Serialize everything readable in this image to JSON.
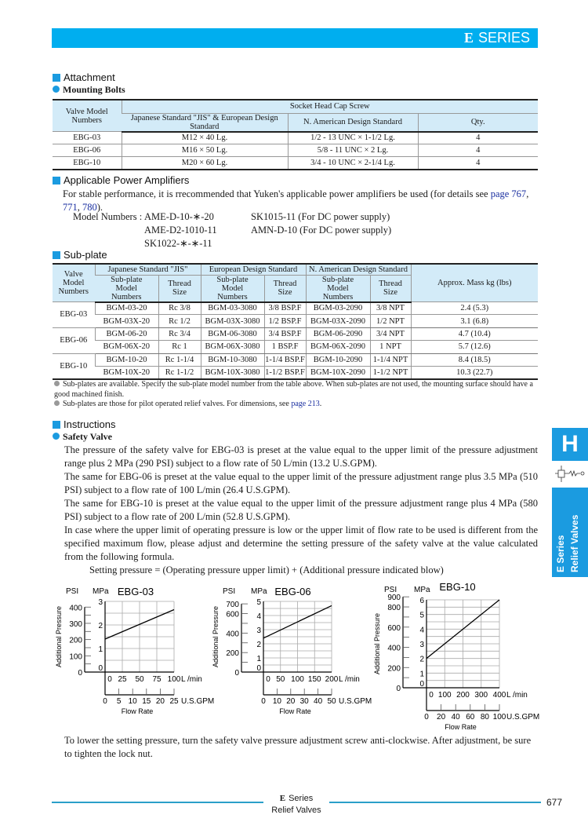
{
  "header": {
    "series_letter": "E",
    "series_label": "SERIES"
  },
  "attachment": {
    "title": "Attachment",
    "subtitle": "Mounting Bolts",
    "table": {
      "col_valve": "Valve Model Numbers",
      "col_group": "Socket Head Cap Screw",
      "col_jis": "Japanese Standard \"JIS\" & European Design Standard",
      "col_na": "N. American Design Standard",
      "col_qty": "Qty.",
      "rows": [
        {
          "model": "EBG-03",
          "jis": "M12 × 40 Lg.",
          "na": "1/2 - 13 UNC × 1-1/2 Lg.",
          "qty": "4"
        },
        {
          "model": "EBG-06",
          "jis": "M16 × 50 Lg.",
          "na": "5/8 - 11 UNC × 2 Lg.",
          "qty": "4"
        },
        {
          "model": "EBG-10",
          "jis": "M20 × 60 Lg.",
          "na": "3/4 - 10 UNC × 2-1/4 Lg.",
          "qty": "4"
        }
      ]
    }
  },
  "amplifiers": {
    "title": "Applicable Power Amplifiers",
    "text_before": "For stable performance, it is rrecommended that Yuken's applicable power amplifiers be used (for details see ",
    "link1": "page 767",
    "sep1": ",",
    "link2": "771",
    "sep2": ", ",
    "link3": "780",
    "text_after": ").",
    "model_label": "Model Numbers :",
    "models_col1": [
      "AME-D-10-∗-20",
      "AME-D2-1010-11",
      "SK1022-∗-∗-11"
    ],
    "models_col2": [
      "SK1015-11 (For DC power supply)",
      "AMN-D-10 (For DC power supply)"
    ]
  },
  "subplate": {
    "title": "Sub-plate",
    "table": {
      "col_valve": "Valve Model Numbers",
      "group_jis": "Japanese Standard \"JIS\"",
      "group_eu": "European Design Standard",
      "group_na": "N. American Design Standard",
      "col_mass": "Approx. Mass kg (lbs)",
      "col_model": "Sub-plate Model Numbers",
      "col_thread": "Thread Size",
      "rows": [
        {
          "valve": "EBG-03",
          "jis": "BGM-03-20",
          "jis_t": "Rc 3/8",
          "eu": "BGM-03-3080",
          "eu_t": "3/8 BSP.F",
          "na": "BGM-03-2090",
          "na_t": "3/8 NPT",
          "mass": "2.4 (5.3)"
        },
        {
          "valve": "",
          "jis": "BGM-03X-20",
          "jis_t": "Rc 1/2",
          "eu": "BGM-03X-3080",
          "eu_t": "1/2 BSP.F",
          "na": "BGM-03X-2090",
          "na_t": "1/2 NPT",
          "mass": "3.1 (6.8)"
        },
        {
          "valve": "EBG-06",
          "jis": "BGM-06-20",
          "jis_t": "Rc 3/4",
          "eu": "BGM-06-3080",
          "eu_t": "3/4 BSP.F",
          "na": "BGM-06-2090",
          "na_t": "3/4 NPT",
          "mass": "4.7 (10.4)"
        },
        {
          "valve": "",
          "jis": "BGM-06X-20",
          "jis_t": "Rc 1",
          "eu": "BGM-06X-3080",
          "eu_t": "1 BSP.F",
          "na": "BGM-06X-2090",
          "na_t": "1 NPT",
          "mass": "5.7 (12.6)"
        },
        {
          "valve": "EBG-10",
          "jis": "BGM-10-20",
          "jis_t": "Rc 1-1/4",
          "eu": "BGM-10-3080",
          "eu_t": "1-1/4 BSP.F",
          "na": "BGM-10-2090",
          "na_t": "1-1/4 NPT",
          "mass": "8.4 (18.5)"
        },
        {
          "valve": "",
          "jis": "BGM-10X-20",
          "jis_t": "Rc 1-1/2",
          "eu": "BGM-10X-3080",
          "eu_t": "1-1/2 BSP.F",
          "na": "BGM-10X-2090",
          "na_t": "1-1/2 NPT",
          "mass": "10.3 (22.7)"
        }
      ]
    },
    "note1": "Sub-plates are available.  Specify the sub-plate model number from the table above.  When sub-plates are not used, the mounting surface should have a good machined finish.",
    "note2_before": "Sub-plates are those for pilot operated relief valves.  For dimensions, see ",
    "note2_link": "page 213",
    "note2_after": "."
  },
  "instructions": {
    "title": "Instructions",
    "subtitle": "Safety Valve",
    "paragraphs": [
      "The pressure of  the safety valve  for EBG-03 is  preset at the  value equal to the upper limit of the pressure adjustment range plus 2 MPa (290 PSI) subject to a flow rate of 50  L/min (13.2 U.S.GPM).",
      "The same for EBG-06 is preset at the value equal to the upper limit of the pressure adjustment range plus 3.5 MPa (510 PSI) subject to a flow rate of 100  L/min (26.4 U.S.GPM).",
      "The same for EBG-10 is preset at the value equal to the upper limit of the pressure adjustment range plus 4 MPa (580 PSI) subject to a flow rate of 200  L/min (52.8 U.S.GPM).",
      "In case where the upper limit of operating pressure is low or the upper limit of flow rate to be used is different from the specified maximum flow, please adjust and determine the setting pressure of the safety valve at the value calculated from the following formula."
    ],
    "formula": "Setting pressure = (Operating pressure upper limit) + (Additional pressure indicated blow)",
    "closing": "To lower the setting pressure, turn the safety valve pressure adjustment screw anti-clockwise.  After adjustment, be sure to tighten the lock nut."
  },
  "chart_data": [
    {
      "type": "line",
      "title": "EBG-03",
      "ylabel": "Additional Pressure",
      "xlabel": "Flow Rate",
      "y_unit": "MPa",
      "y2_unit": "PSI",
      "x_unit": "L /min",
      "x2_unit": "U.S.GPM",
      "ylim": [
        0,
        3
      ],
      "yticks": [
        0,
        1,
        2,
        3
      ],
      "y2ticks": [
        0,
        100,
        200,
        300,
        400
      ],
      "xlim": [
        0,
        100
      ],
      "xticks": [
        0,
        25,
        50,
        75,
        100
      ],
      "x2ticks": [
        0,
        5,
        10,
        15,
        20,
        25
      ],
      "grid": true,
      "x": [
        0,
        100
      ],
      "y": [
        1.4,
        2.65
      ]
    },
    {
      "type": "line",
      "title": "EBG-06",
      "ylabel": "Additional Pressure",
      "xlabel": "Flow Rate",
      "y_unit": "MPa",
      "y2_unit": "PSI",
      "x_unit": "L /min",
      "x2_unit": "U.S.GPM",
      "ylim": [
        0,
        5
      ],
      "yticks": [
        0,
        1,
        2,
        3,
        4,
        5
      ],
      "y2ticks": [
        0,
        200,
        400,
        600,
        700
      ],
      "xlim": [
        0,
        200
      ],
      "xticks": [
        0,
        50,
        100,
        150,
        200
      ],
      "x2ticks": [
        0,
        10,
        20,
        30,
        40,
        50
      ],
      "grid": true,
      "x": [
        0,
        200
      ],
      "y": [
        2.4,
        4.7
      ]
    },
    {
      "type": "line",
      "title": "EBG-10",
      "ylabel": "Additional Pressure",
      "xlabel": "Flow Rate",
      "y_unit": "MPa",
      "y2_unit": "PSI",
      "x_unit": "L /min",
      "x2_unit": "U.S.GPM",
      "ylim": [
        0,
        6
      ],
      "yticks": [
        0,
        1,
        2,
        3,
        4,
        5,
        6
      ],
      "y2ticks": [
        0,
        200,
        400,
        600,
        800,
        900
      ],
      "xlim": [
        0,
        400
      ],
      "xticks": [
        0,
        100,
        200,
        300,
        400
      ],
      "x2ticks": [
        0,
        20,
        40,
        60,
        80,
        100
      ],
      "grid": true,
      "x": [
        0,
        400
      ],
      "y": [
        2,
        6
      ]
    }
  ],
  "side_tab": {
    "letter": "H",
    "line1": "E Series",
    "line2": "Relief Valves",
    "icon": "relief-valve-symbol-icon"
  },
  "footer": {
    "series_letter": "E",
    "series_label": "Series",
    "subtitle": "Relief Valves",
    "page_number": "677"
  },
  "colors": {
    "brand_blue": "#00aeef",
    "accent_blue": "#1b9be0",
    "table_header": "#d3ebf8",
    "link": "#1a2fa0"
  }
}
